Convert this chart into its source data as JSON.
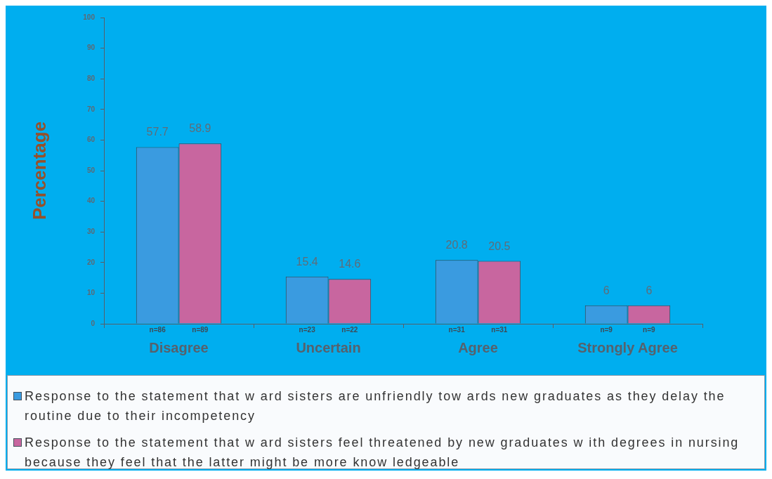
{
  "chart_data": {
    "type": "bar",
    "ylabel": "Percentage",
    "categories": [
      "Disagree",
      "Uncertain",
      "Agree",
      "Strongly Agree"
    ],
    "series": [
      {
        "name": "Response to the statement that w ard sisters are unfriendly tow ards new graduates as they delay the routine due to their incompetency",
        "color": "#3a9be0",
        "values": [
          57.7,
          15.4,
          20.8,
          6
        ]
      },
      {
        "name": "Response to the statement that w ard sisters feel threatened by new graduates w ith degrees in nursing because they feel that the latter might be more know ledgeable",
        "color": "#c8669f",
        "values": [
          58.9,
          14.6,
          20.5,
          6
        ]
      }
    ],
    "ylim": [
      0,
      100
    ],
    "yticks": [
      0,
      10,
      20,
      30,
      40,
      50,
      60,
      70,
      80,
      90,
      100
    ],
    "data_labels": true,
    "legend": "bottom",
    "annotations": [
      {
        "text": "n=86",
        "x": "Disagree",
        "y": 0
      },
      {
        "text": "n=89",
        "x": "Disagree",
        "y": 0
      },
      {
        "text": "n=23",
        "x": "Uncertain",
        "y": 0
      },
      {
        "text": "n=22",
        "x": "Uncertain",
        "y": 0
      },
      {
        "text": "n=31",
        "x": "Agree",
        "y": 0
      },
      {
        "text": "n=31",
        "x": "Agree",
        "y": 0
      },
      {
        "text": "n=9",
        "x": "Strongly Agree",
        "y": 0
      },
      {
        "text": "n=9",
        "x": "Strongly Agree",
        "y": 0
      }
    ]
  }
}
